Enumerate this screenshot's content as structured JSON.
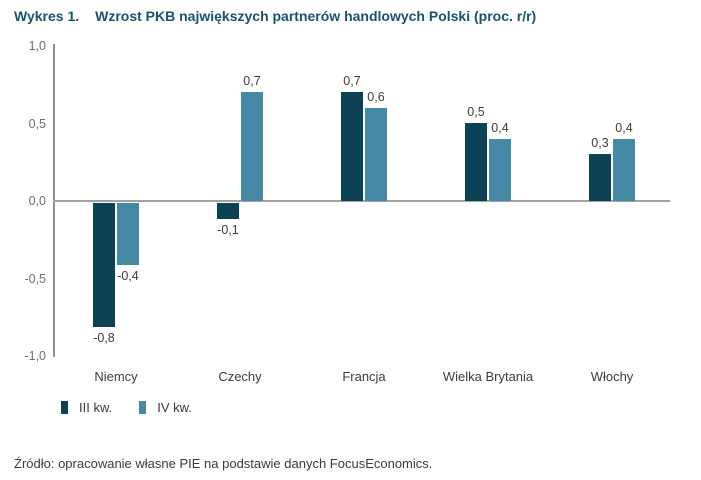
{
  "title": {
    "prefix": "Wykres 1.",
    "text": "Wzrost PKB największych partnerów handlowych Polski (proc. r/r)"
  },
  "chart_data": {
    "type": "bar",
    "categories": [
      "Niemcy",
      "Czechy",
      "Francja",
      "Wielka Brytania",
      "Włochy"
    ],
    "series": [
      {
        "name": "III kw.",
        "color": "#0D4156",
        "values": [
          -0.8,
          -0.1,
          0.7,
          0.5,
          0.3
        ]
      },
      {
        "name": "IV kw.",
        "color": "#4689A7",
        "values": [
          -0.4,
          0.7,
          0.6,
          0.4,
          0.4
        ]
      }
    ],
    "data_labels": [
      [
        "-0,8",
        "-0,1",
        "0,7",
        "0,5",
        "0,3"
      ],
      [
        "-0,4",
        "0,7",
        "0,6",
        "0,4",
        "0,4"
      ]
    ],
    "y_ticks": [
      "1,0",
      "0,5",
      "0,0",
      "-0,5",
      "-1,0"
    ],
    "y_tick_values": [
      1.0,
      0.5,
      0.0,
      -0.5,
      -1.0
    ],
    "ylim": [
      -1.0,
      1.0
    ],
    "decimal_separator": ",",
    "grid": false,
    "legend_position": "bottom-left"
  },
  "source": "Źródło: opracowanie własne PIE na podstawie danych FocusEconomics.",
  "colors": {
    "title": "#1A5270",
    "series1": "#0D4156",
    "series2": "#4689A7",
    "axis": "#8F8F8F",
    "zero_line": "#A3A3A3",
    "tick_text": "#6E6E6E",
    "label_text": "#3C3C3C"
  }
}
